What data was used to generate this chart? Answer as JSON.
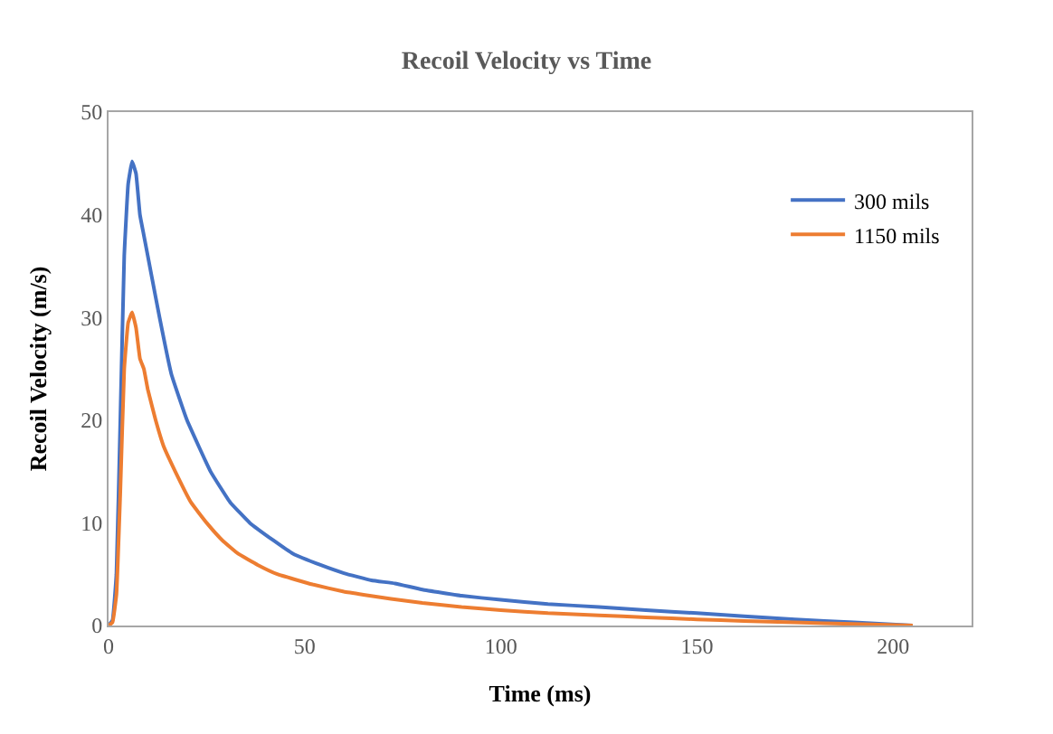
{
  "chart_data": {
    "type": "line",
    "title": "Recoil Velocity vs Time",
    "xlabel": "Time (ms)",
    "ylabel": "Recoil Velocity (m/s)",
    "xlim": [
      0,
      220
    ],
    "xticks": [
      0,
      50,
      100,
      150,
      200
    ],
    "ylim": [
      0,
      50
    ],
    "yticks": [
      0,
      10,
      20,
      30,
      40,
      50
    ],
    "grid": false,
    "legend": "top right",
    "marker": "none",
    "line_style": "solid",
    "series": [
      {
        "name": "300 mils",
        "color": "#4472c4",
        "x": [
          0,
          1,
          2,
          3,
          4,
          5,
          6,
          7,
          8,
          9,
          11,
          13,
          16,
          20,
          26,
          31,
          36,
          42,
          47,
          54,
          60,
          67,
          73,
          80,
          90,
          100,
          112,
          125,
          137,
          150,
          162,
          175,
          190,
          205
        ],
        "values": [
          0,
          0.5,
          5,
          20,
          36,
          43,
          45.2,
          44,
          40,
          38,
          34,
          30,
          24.5,
          20,
          15,
          12,
          10,
          8.3,
          7,
          5.9,
          5.1,
          4.4,
          4.1,
          3.5,
          2.9,
          2.5,
          2.1,
          1.8,
          1.5,
          1.2,
          0.9,
          0.6,
          0.3,
          0
        ]
      },
      {
        "name": "1150 mils",
        "color": "#ed7d31",
        "x": [
          0,
          1,
          2,
          3,
          4,
          5,
          6,
          7,
          8,
          9,
          10,
          12,
          14,
          17,
          21,
          25,
          29,
          33,
          38,
          43,
          52,
          60,
          65,
          72,
          80,
          90,
          100,
          112,
          125,
          137,
          150,
          162,
          175,
          190,
          205
        ],
        "values": [
          0,
          0.3,
          3,
          13,
          25,
          29.5,
          30.5,
          29,
          26,
          25,
          23,
          20,
          17.5,
          15,
          12,
          10,
          8.3,
          7,
          5.9,
          5,
          4,
          3.3,
          3,
          2.6,
          2.2,
          1.8,
          1.5,
          1.2,
          1,
          0.8,
          0.6,
          0.45,
          0.3,
          0.15,
          0
        ]
      }
    ]
  }
}
